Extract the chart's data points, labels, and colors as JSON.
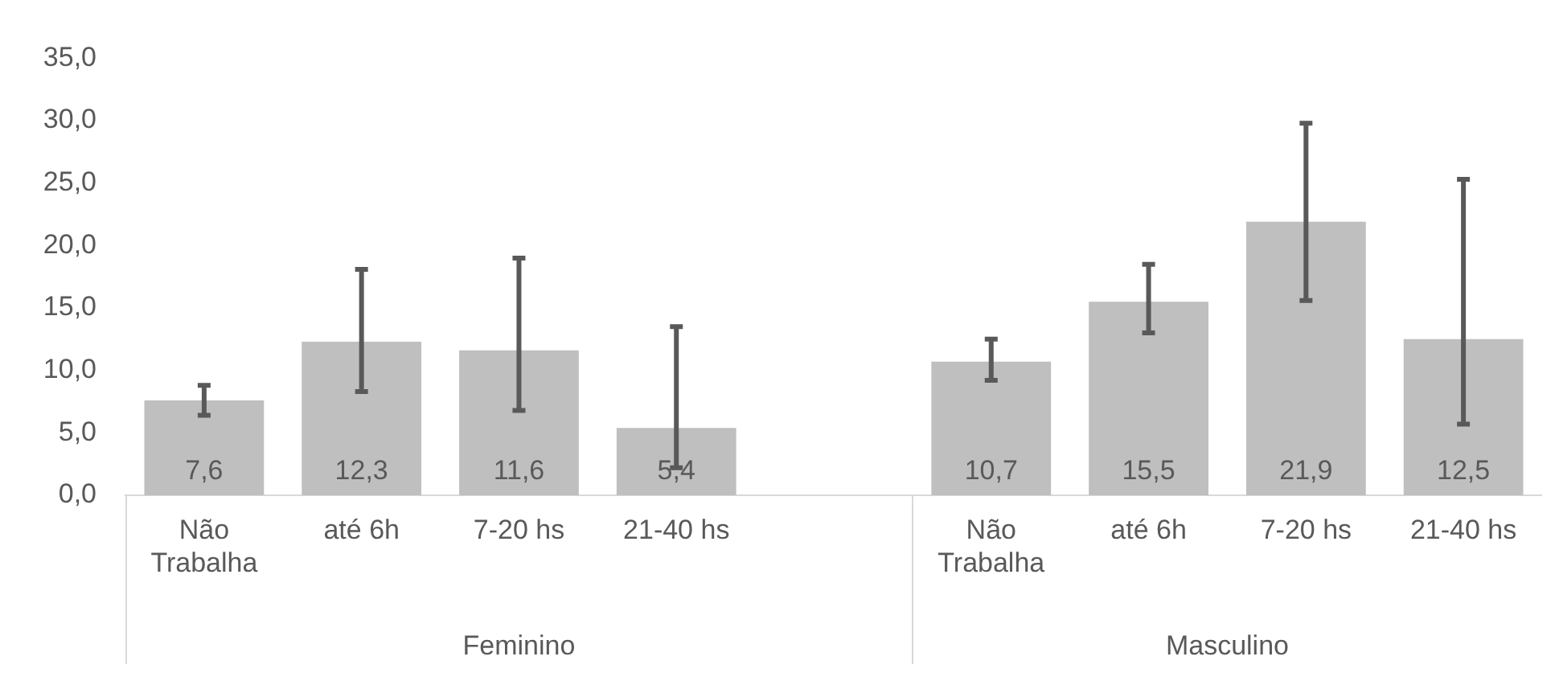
{
  "chart_data": {
    "type": "bar",
    "categories": [
      "Não Trabalha",
      "até 6h",
      "7-20 hs",
      "21-40 hs",
      null,
      "Não Trabalha",
      "até 6h",
      "7-20 hs",
      "21-40 hs"
    ],
    "values": [
      7.6,
      12.3,
      11.6,
      5.4,
      null,
      10.7,
      15.5,
      21.9,
      12.5
    ],
    "errors": [
      [
        6.4,
        8.8
      ],
      [
        8.3,
        18.1
      ],
      [
        6.8,
        19.0
      ],
      [
        2.2,
        13.5
      ],
      null,
      [
        9.2,
        12.5
      ],
      [
        13.0,
        18.5
      ],
      [
        15.6,
        29.8
      ],
      [
        5.7,
        25.3
      ]
    ],
    "color": "#bfbfbf",
    "ylim": [
      0,
      35
    ],
    "yticks": [
      {
        "value": 0,
        "label": "0,0"
      },
      {
        "value": 5,
        "label": "5,0"
      },
      {
        "value": 10,
        "label": "10,0"
      },
      {
        "value": 15,
        "label": "15,0"
      },
      {
        "value": 20,
        "label": "20,0"
      },
      {
        "value": 25,
        "label": "25,0"
      },
      {
        "value": 30,
        "label": "30,0"
      },
      {
        "value": 35,
        "label": "35,0"
      }
    ],
    "value_labels": [
      "7,6",
      "12,3",
      "11,6",
      "5,4",
      null,
      "10,7",
      "15,5",
      "21,9",
      "12,5"
    ],
    "grid": false,
    "legend": false,
    "annotations": [
      "Feminino",
      "Masculino"
    ]
  }
}
